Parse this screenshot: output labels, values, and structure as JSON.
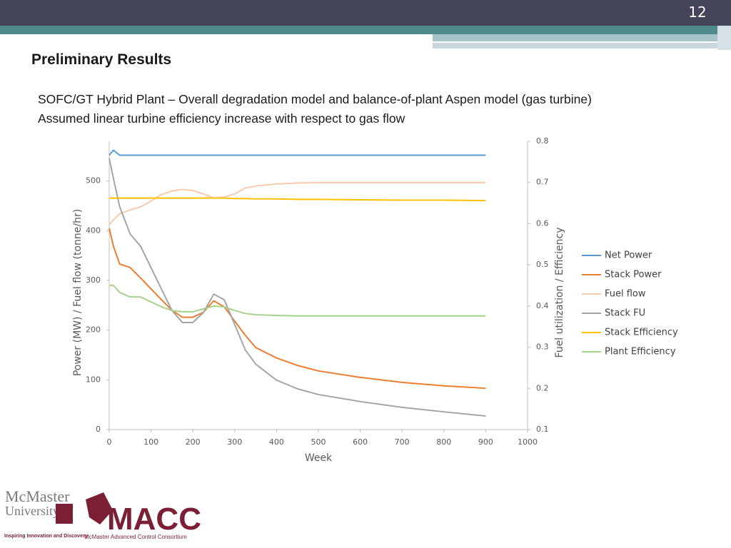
{
  "slide_number": "12",
  "title": "Preliminary Results",
  "subtitle_lines": [
    "SOFC/GT Hybrid Plant – Overall degradation model and balance-of-plant Aspen model (gas turbine)",
    "Assumed linear turbine efficiency increase with respect to gas flow"
  ],
  "logos": {
    "university_name": [
      "McMaster",
      "University"
    ],
    "university_motto": "Inspiring Innovation and Discovery",
    "consortium_name": "MACC",
    "consortium_full_name": "McMaster Advanced Control Consortium"
  },
  "chart_data": {
    "type": "line",
    "x_label": "Week",
    "y_label": "Power (MW) / Fuel flow (tonne/hr)",
    "y2_label": "Fuel utilization / Efficiency",
    "x": [
      0,
      10,
      25,
      50,
      75,
      100,
      125,
      150,
      175,
      200,
      225,
      250,
      275,
      300,
      325,
      350,
      400,
      450,
      500,
      600,
      700,
      800,
      900
    ],
    "xlim": [
      0,
      1000
    ],
    "xticks": [
      0,
      100,
      200,
      300,
      400,
      500,
      600,
      700,
      800,
      900,
      1000
    ],
    "ylim": [
      0,
      580
    ],
    "yticks": [
      0,
      100,
      200,
      300,
      400,
      500
    ],
    "y2lim": [
      0.1,
      0.8
    ],
    "y2ticks": [
      0.1,
      0.2,
      0.3,
      0.4,
      0.5,
      0.6,
      0.7,
      0.8
    ],
    "grid": false,
    "legend": "right",
    "series": [
      {
        "name": "Net Power",
        "color": "#5b9bd5",
        "values": [
          552,
          562,
          552,
          552,
          552,
          552,
          552,
          552,
          552,
          552,
          552,
          552,
          552,
          552,
          552,
          552,
          552,
          552,
          552,
          552,
          552,
          552,
          552
        ]
      },
      {
        "name": "Stack Power",
        "color": "#ed7d31",
        "values": [
          405,
          369,
          333,
          326,
          305,
          283,
          261,
          240,
          226,
          226,
          236,
          259,
          247,
          218,
          190,
          165,
          144,
          129,
          118,
          105,
          95,
          88,
          83
        ]
      },
      {
        "name": "Fuel flow",
        "color": "#f8cbad",
        "values": [
          412,
          422,
          434,
          442,
          448,
          460,
          473,
          480,
          483,
          481,
          474,
          466,
          468,
          474,
          486,
          490,
          494,
          496,
          497,
          497,
          497,
          497,
          497
        ]
      },
      {
        "name": "Stack FU",
        "color": "#a5a5a5",
        "axis": "y2",
        "values": [
          0.759,
          0.71,
          0.641,
          0.575,
          0.545,
          0.493,
          0.441,
          0.389,
          0.36,
          0.36,
          0.384,
          0.429,
          0.415,
          0.355,
          0.294,
          0.259,
          0.22,
          0.199,
          0.185,
          0.168,
          0.154,
          0.143,
          0.133
        ]
      },
      {
        "name": "Stack Efficiency",
        "color": "#ffc000",
        "axis": "y2",
        "values": [
          0.662,
          0.662,
          0.662,
          0.662,
          0.662,
          0.662,
          0.662,
          0.662,
          0.662,
          0.662,
          0.662,
          0.662,
          0.662,
          0.661,
          0.661,
          0.66,
          0.66,
          0.659,
          0.659,
          0.658,
          0.657,
          0.657,
          0.656
        ]
      },
      {
        "name": "Plant Efficiency",
        "color": "#a9d18e",
        "axis": "y2",
        "values": [
          0.45,
          0.45,
          0.433,
          0.422,
          0.422,
          0.41,
          0.398,
          0.389,
          0.386,
          0.386,
          0.393,
          0.4,
          0.398,
          0.389,
          0.382,
          0.379,
          0.377,
          0.376,
          0.376,
          0.376,
          0.376,
          0.376,
          0.376
        ]
      }
    ]
  }
}
